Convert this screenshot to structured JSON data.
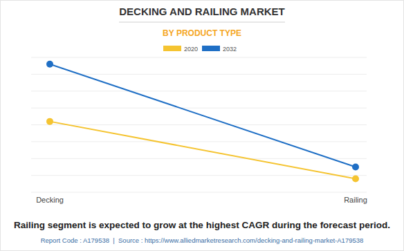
{
  "chart_data": {
    "type": "line",
    "title": "DECKING AND RAILING MARKET",
    "subtitle": "BY PRODUCT TYPE",
    "caption": "Railing segment is expected to grow at the highest CAGR during the forecast period.",
    "source": "Report Code : A179538  |  Source : https://www.alliedmarketresearch.com/decking-and-railing-market-A179538",
    "categories": [
      "Decking",
      "Railing"
    ],
    "series": [
      {
        "name": "2020",
        "color": "#f5c431",
        "values": [
          4.2,
          0.8
        ],
        "marker": "circle"
      },
      {
        "name": "2032",
        "color": "#1f6fc5",
        "values": [
          7.6,
          1.5
        ],
        "marker": "circle"
      }
    ],
    "ylim": [
      0,
      8
    ],
    "yticks": [
      0,
      1,
      2,
      3,
      4,
      5,
      6,
      7,
      8
    ],
    "grid": true,
    "tick_labels": "x",
    "legend": "top"
  }
}
